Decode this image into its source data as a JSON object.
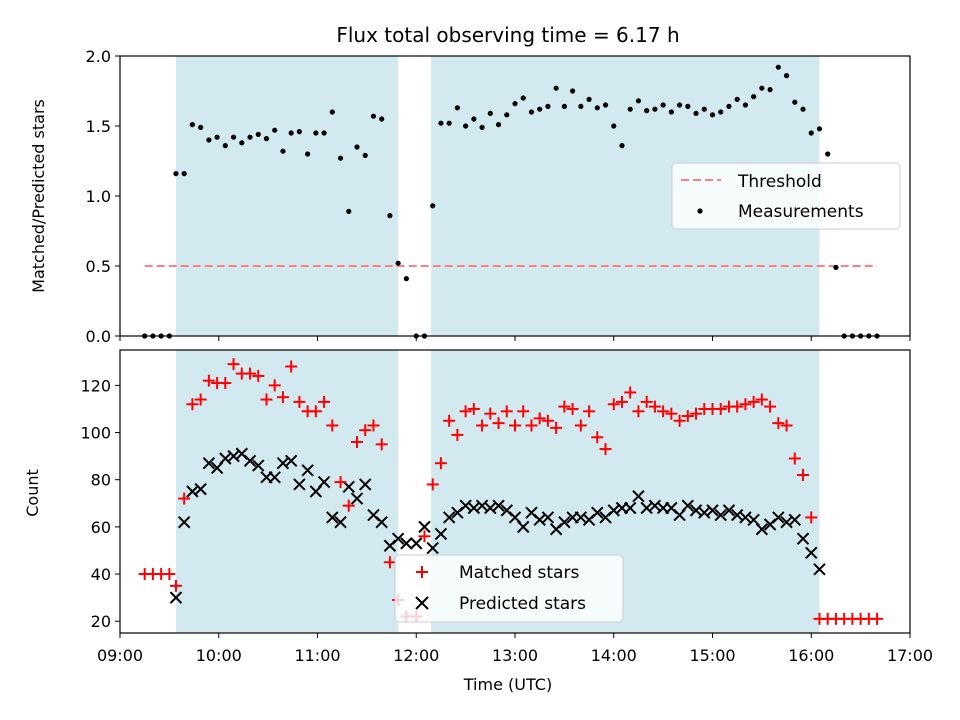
{
  "chart_data": [
    {
      "type": "scatter",
      "title": "Flux total observing time = 6.17 h",
      "xlabel": "",
      "ylabel": "Matched/Predicted stars",
      "xlim": [
        "09:00",
        "17:00"
      ],
      "ylim": [
        0,
        2.0
      ],
      "yticks": [
        "0.0",
        "0.5",
        "1.0",
        "1.5",
        "2.0"
      ],
      "shaded_intervals": [
        [
          "09:34",
          "11:49"
        ],
        [
          "12:09",
          "16:05"
        ],
        "#d3e9f0"
      ],
      "threshold": {
        "name": "Threshold",
        "value": 0.5,
        "x_range": [
          "09:15",
          "16:40"
        ],
        "color": "#ff7f7f"
      },
      "legend": {
        "position": "center-right",
        "entries": [
          "Threshold",
          "Measurements"
        ]
      },
      "series": [
        {
          "name": "Measurements",
          "color": "#000000",
          "x": [
            "09:15",
            "09:20",
            "09:25",
            "09:30",
            "09:34",
            "09:39",
            "09:44",
            "09:49",
            "09:54",
            "09:59",
            "10:04",
            "10:09",
            "10:14",
            "10:19",
            "10:24",
            "10:29",
            "10:34",
            "10:39",
            "10:44",
            "10:49",
            "10:54",
            "10:59",
            "11:04",
            "11:09",
            "11:14",
            "11:19",
            "11:24",
            "11:29",
            "11:34",
            "11:39",
            "11:44",
            "11:49",
            "11:54",
            "12:00",
            "12:05",
            "12:10",
            "12:15",
            "12:20",
            "12:25",
            "12:30",
            "12:35",
            "12:40",
            "12:45",
            "12:50",
            "12:55",
            "13:00",
            "13:05",
            "13:10",
            "13:15",
            "13:20",
            "13:25",
            "13:30",
            "13:35",
            "13:40",
            "13:45",
            "13:50",
            "13:55",
            "14:00",
            "14:05",
            "14:10",
            "14:15",
            "14:20",
            "14:25",
            "14:30",
            "14:35",
            "14:40",
            "14:45",
            "14:50",
            "14:55",
            "15:00",
            "15:05",
            "15:10",
            "15:15",
            "15:20",
            "15:25",
            "15:30",
            "15:35",
            "15:40",
            "15:45",
            "15:50",
            "15:55",
            "16:00",
            "16:05",
            "16:10",
            "16:15",
            "16:20",
            "16:25",
            "16:30",
            "16:35",
            "16:40"
          ],
          "values": [
            0,
            0,
            0,
            0,
            1.16,
            1.16,
            1.51,
            1.49,
            1.4,
            1.42,
            1.36,
            1.42,
            1.38,
            1.42,
            1.44,
            1.41,
            1.47,
            1.32,
            1.45,
            1.46,
            1.3,
            1.45,
            1.45,
            1.6,
            1.27,
            0.89,
            1.35,
            1.29,
            1.57,
            1.55,
            0.86,
            0.52,
            0.41,
            0,
            0,
            0.93,
            1.52,
            1.52,
            1.63,
            1.5,
            1.55,
            1.49,
            1.59,
            1.51,
            1.58,
            1.66,
            1.7,
            1.6,
            1.62,
            1.64,
            1.77,
            1.64,
            1.75,
            1.64,
            1.69,
            1.63,
            1.65,
            1.5,
            1.36,
            1.62,
            1.68,
            1.61,
            1.62,
            1.65,
            1.6,
            1.65,
            1.64,
            1.59,
            1.62,
            1.58,
            1.6,
            1.64,
            1.69,
            1.65,
            1.71,
            1.77,
            1.76,
            1.92,
            1.86,
            1.67,
            1.62,
            1.45,
            1.48,
            1.3,
            0.49,
            0,
            0,
            0,
            0,
            0
          ]
        }
      ]
    },
    {
      "type": "scatter",
      "title": "",
      "xlabel": "Time (UTC)",
      "ylabel": "Count",
      "xlim": [
        "09:00",
        "17:00"
      ],
      "ylim": [
        15,
        135
      ],
      "yticks": [
        "20",
        "40",
        "60",
        "80",
        "100",
        "120"
      ],
      "xticks": [
        "09:00",
        "10:00",
        "11:00",
        "12:00",
        "13:00",
        "14:00",
        "15:00",
        "16:00",
        "17:00"
      ],
      "shaded_intervals": [
        [
          "09:34",
          "11:49"
        ],
        [
          "12:09",
          "16:05"
        ],
        "#d3e9f0"
      ],
      "legend": {
        "position": "lower-center",
        "entries": [
          "Matched stars",
          "Predicted stars"
        ]
      },
      "series": [
        {
          "name": "Matched stars",
          "marker": "+",
          "color": "#ff0000",
          "x": [
            "09:15",
            "09:20",
            "09:25",
            "09:30",
            "09:34",
            "09:39",
            "09:44",
            "09:49",
            "09:54",
            "09:59",
            "10:04",
            "10:09",
            "10:14",
            "10:19",
            "10:24",
            "10:29",
            "10:34",
            "10:39",
            "10:44",
            "10:49",
            "10:54",
            "10:59",
            "11:04",
            "11:09",
            "11:14",
            "11:19",
            "11:24",
            "11:29",
            "11:34",
            "11:39",
            "11:44",
            "11:49",
            "11:54",
            "12:00",
            "12:05",
            "12:10",
            "12:15",
            "12:20",
            "12:25",
            "12:30",
            "12:35",
            "12:40",
            "12:45",
            "12:50",
            "12:55",
            "13:00",
            "13:05",
            "13:10",
            "13:15",
            "13:20",
            "13:25",
            "13:30",
            "13:35",
            "13:40",
            "13:45",
            "13:50",
            "13:55",
            "14:00",
            "14:05",
            "14:10",
            "14:15",
            "14:20",
            "14:25",
            "14:30",
            "14:35",
            "14:40",
            "14:45",
            "14:50",
            "14:55",
            "15:00",
            "15:05",
            "15:10",
            "15:15",
            "15:20",
            "15:25",
            "15:30",
            "15:35",
            "15:40",
            "15:45",
            "15:50",
            "15:55",
            "16:00",
            "16:05",
            "16:10",
            "16:15",
            "16:20",
            "16:25",
            "16:30",
            "16:35",
            "16:40"
          ],
          "values": [
            40,
            40,
            40,
            40,
            35,
            72,
            112,
            114,
            122,
            121,
            121,
            129,
            125,
            125,
            124,
            114,
            120,
            115,
            128,
            113,
            109,
            109,
            113,
            103,
            79,
            69,
            96,
            101,
            103,
            95,
            45,
            29,
            22,
            22,
            56,
            78,
            87,
            105,
            99,
            109,
            110,
            103,
            108,
            104,
            109,
            103,
            109,
            103,
            106,
            105,
            102,
            111,
            110,
            103,
            109,
            98,
            93,
            112,
            113,
            117,
            109,
            113,
            111,
            109,
            108,
            105,
            107,
            108,
            110,
            110,
            110,
            111,
            111,
            112,
            113,
            114,
            111,
            104,
            103,
            89,
            82,
            64,
            21,
            21,
            21,
            21,
            21,
            21,
            21,
            21
          ]
        },
        {
          "name": "Predicted stars",
          "marker": "x",
          "color": "#000000",
          "x": [
            "09:34",
            "09:39",
            "09:44",
            "09:49",
            "09:54",
            "09:59",
            "10:04",
            "10:09",
            "10:14",
            "10:19",
            "10:24",
            "10:29",
            "10:34",
            "10:39",
            "10:44",
            "10:49",
            "10:54",
            "10:59",
            "11:04",
            "11:09",
            "11:14",
            "11:19",
            "11:24",
            "11:29",
            "11:34",
            "11:39",
            "11:44",
            "11:49",
            "11:54",
            "12:00",
            "12:05",
            "12:10",
            "12:15",
            "12:20",
            "12:25",
            "12:30",
            "12:35",
            "12:40",
            "12:45",
            "12:50",
            "12:55",
            "13:00",
            "13:05",
            "13:10",
            "13:15",
            "13:20",
            "13:25",
            "13:30",
            "13:35",
            "13:40",
            "13:45",
            "13:50",
            "13:55",
            "14:00",
            "14:05",
            "14:10",
            "14:15",
            "14:20",
            "14:25",
            "14:30",
            "14:35",
            "14:40",
            "14:45",
            "14:50",
            "14:55",
            "15:00",
            "15:05",
            "15:10",
            "15:15",
            "15:20",
            "15:25",
            "15:30",
            "15:35",
            "15:40",
            "15:45",
            "15:50",
            "15:55",
            "16:00",
            "16:05"
          ],
          "values": [
            30,
            62,
            75,
            76,
            87,
            85,
            89,
            90,
            91,
            88,
            86,
            81,
            81,
            87,
            88,
            78,
            84,
            75,
            79,
            64,
            62,
            77,
            72,
            78,
            65,
            62,
            52,
            55,
            53,
            53,
            60,
            51,
            57,
            64,
            66,
            69,
            68,
            69,
            68,
            69,
            67,
            64,
            60,
            66,
            63,
            64,
            59,
            62,
            64,
            64,
            63,
            66,
            64,
            67,
            68,
            68,
            73,
            68,
            69,
            68,
            68,
            65,
            69,
            67,
            66,
            67,
            65,
            67,
            65,
            64,
            63,
            59,
            61,
            64,
            62,
            63,
            55,
            49,
            42
          ]
        }
      ]
    }
  ]
}
